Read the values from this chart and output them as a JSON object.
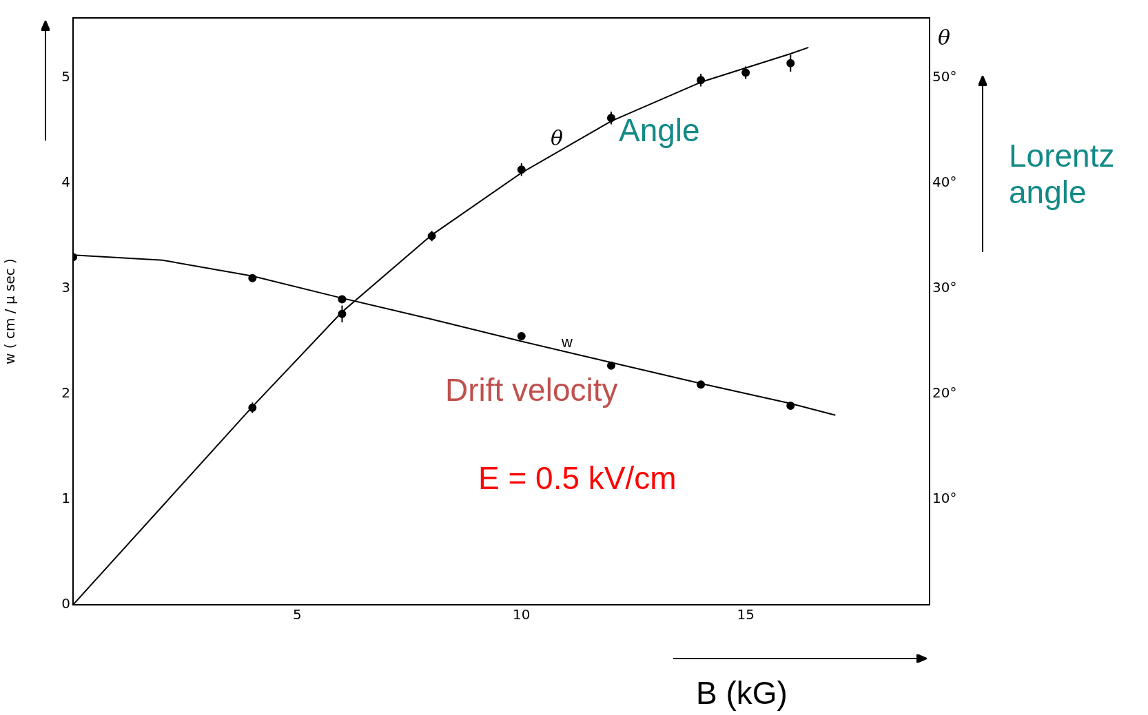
{
  "chart_data": {
    "type": "scatter",
    "xlabel": "B (kG)",
    "ylabel": "w ( cm / μ sec )",
    "y2label": "θ",
    "xlim": [
      0,
      19.1
    ],
    "xticks": [
      5,
      10,
      15
    ],
    "ylim": [
      0,
      5.57
    ],
    "yticks": [
      0,
      1,
      2,
      3,
      4,
      5
    ],
    "y2lim": [
      0,
      55.7
    ],
    "y2ticks": [
      {
        "value": 10,
        "label": "10°"
      },
      {
        "value": 20,
        "label": "20°"
      },
      {
        "value": 30,
        "label": "30°"
      },
      {
        "value": 40,
        "label": "40°"
      },
      {
        "value": 50,
        "label": "50°"
      }
    ],
    "grid": false,
    "legend": false,
    "annotations": [
      "Angle",
      "Lorentz angle",
      "Drift velocity",
      "E = 0.5 kV/cm",
      "θ",
      "w"
    ],
    "series": [
      {
        "type": "line",
        "color": "#000000",
        "marker": "none",
        "x": [
          0,
          2,
          4,
          6,
          8,
          10,
          12,
          14,
          16,
          17
        ],
        "values": [
          3.32,
          3.27,
          3.12,
          2.91,
          2.71,
          2.5,
          2.3,
          2.1,
          1.91,
          1.8
        ]
      },
      {
        "type": "scatter",
        "color": "#000000",
        "marker": "circle",
        "x": [
          0,
          4,
          6,
          10,
          12,
          14,
          16
        ],
        "values": [
          3.3,
          3.1,
          2.9,
          2.55,
          2.27,
          2.09,
          1.89
        ]
      },
      {
        "type": "line",
        "axis": "y2",
        "color": "#000000",
        "marker": "none",
        "x": [
          0,
          2,
          4,
          6,
          8,
          10,
          12,
          14,
          16,
          16.4
        ],
        "values": [
          0,
          9.4,
          18.8,
          27.8,
          35.1,
          41.0,
          45.9,
          49.6,
          52.3,
          52.9
        ]
      },
      {
        "type": "scatter",
        "axis": "y2",
        "color": "#000000",
        "marker": "circle",
        "x": [
          4,
          6,
          8,
          10,
          12,
          14,
          15,
          16
        ],
        "values": [
          18.7,
          27.6,
          35.0,
          41.3,
          46.2,
          49.8,
          50.5,
          51.4
        ],
        "errors": [
          0.5,
          0.8,
          0.5,
          0.6,
          0.6,
          0.6,
          0.6,
          0.8
        ]
      }
    ]
  }
}
